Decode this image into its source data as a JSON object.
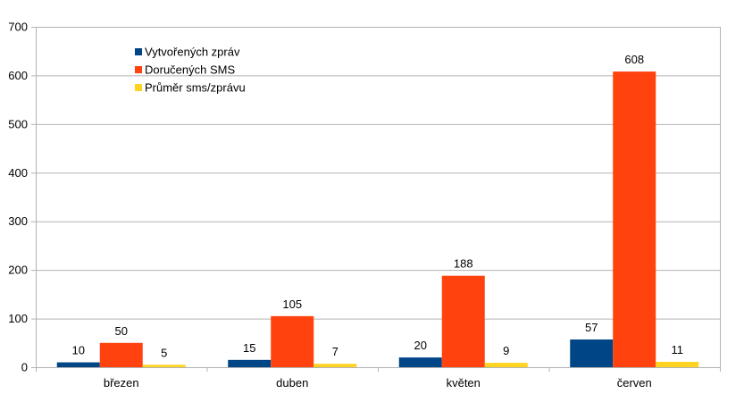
{
  "chart_data": {
    "type": "bar",
    "categories": [
      "březen",
      "duben",
      "květen",
      "červen"
    ],
    "series": [
      {
        "name": "Vytvořených zpráv",
        "color": "#004586",
        "values": [
          10,
          15,
          20,
          57
        ]
      },
      {
        "name": "Doručených SMS",
        "color": "#ff420e",
        "values": [
          50,
          105,
          188,
          608
        ]
      },
      {
        "name": "Průměr sms/zprávu",
        "color": "#ffd320",
        "values": [
          5,
          7,
          9,
          11
        ]
      }
    ],
    "ylim": [
      0,
      700
    ],
    "yticks": [
      0,
      100,
      200,
      300,
      400,
      500,
      600,
      700
    ],
    "grid": true,
    "legend_position": "top-left",
    "data_labels": true,
    "title": "",
    "xlabel": "",
    "ylabel": ""
  }
}
